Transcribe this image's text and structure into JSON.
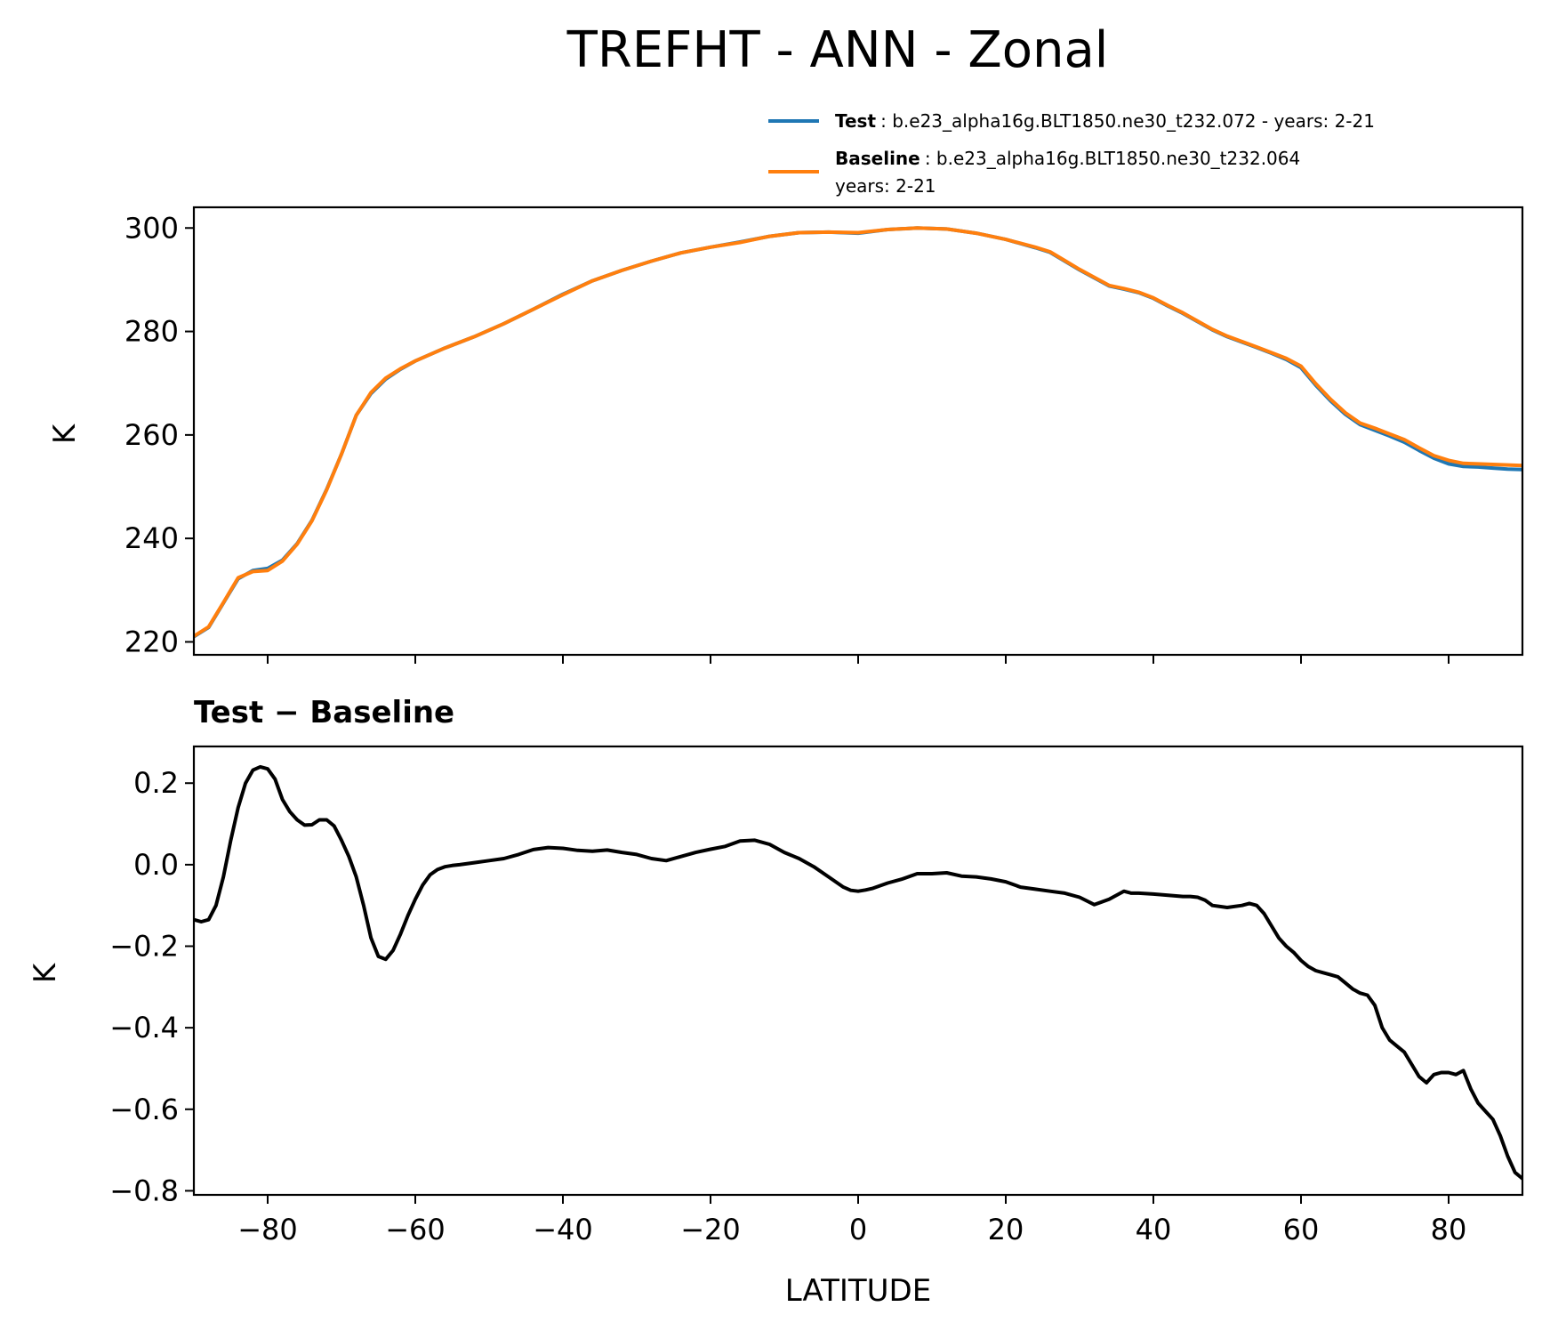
{
  "colors": {
    "test": "#1f77b4",
    "baseline": "#ff7f0e",
    "difference": "#000000"
  },
  "chart_data": [
    {
      "type": "line",
      "title": "TREFHT - ANN - Zonal",
      "xlabel": "",
      "ylabel": "K",
      "xlim": [
        -90,
        90
      ],
      "ylim": [
        217.5,
        304
      ],
      "xticks": [
        -80,
        -60,
        -40,
        -20,
        0,
        20,
        40,
        60,
        80
      ],
      "yticks": [
        220,
        240,
        260,
        280,
        300
      ],
      "ytick_labels": [
        "220",
        "240",
        "260",
        "280",
        "300"
      ],
      "legend": [
        {
          "bold": "Test",
          "text": ": b.e23_alpha16g.BLT1850.ne30_t232.072 - years: 2-21",
          "text2": ""
        },
        {
          "bold": "Baseline",
          "text": ": b.e23_alpha16g.BLT1850.ne30_t232.064",
          "text2": "years: 2-21"
        }
      ],
      "legend_position": "above-right",
      "x": [
        -90,
        -88,
        -86,
        -84,
        -82,
        -80,
        -78,
        -76,
        -74,
        -72,
        -70,
        -68,
        -66,
        -64,
        -62,
        -60,
        -56,
        -52,
        -48,
        -44,
        -40,
        -36,
        -32,
        -28,
        -24,
        -20,
        -16,
        -12,
        -8,
        -4,
        0,
        4,
        8,
        12,
        16,
        20,
        24,
        26,
        28,
        30,
        34,
        36,
        38,
        40,
        42,
        44,
        48,
        50,
        54,
        56,
        58,
        60,
        62,
        64,
        66,
        68,
        70,
        72,
        74,
        76,
        78,
        80,
        82,
        84,
        86,
        88,
        90
      ],
      "series": [
        {
          "name": "Test",
          "values": [
            221.0,
            222.8,
            227.5,
            232.2,
            233.8,
            234.2,
            235.8,
            239.0,
            243.5,
            249.5,
            256.3,
            263.8,
            268.0,
            270.8,
            272.7,
            274.3,
            276.8,
            279.0,
            281.5,
            284.3,
            287.2,
            289.8,
            291.8,
            293.6,
            295.2,
            296.3,
            297.3,
            298.4,
            299.1,
            299.2,
            299.0,
            299.7,
            300.0,
            299.8,
            299.0,
            297.8,
            296.2,
            295.3,
            293.6,
            291.9,
            288.8,
            288.2,
            287.5,
            286.4,
            284.9,
            283.5,
            280.3,
            279.0,
            276.9,
            275.8,
            274.6,
            273.0,
            269.6,
            266.6,
            264.0,
            262.0,
            260.9,
            259.8,
            258.6,
            257.0,
            255.5,
            254.4,
            253.9,
            253.8,
            253.6,
            253.4,
            253.3
          ]
        },
        {
          "name": "Baseline",
          "values": [
            221.1,
            222.9,
            227.6,
            232.4,
            233.6,
            233.8,
            235.6,
            238.9,
            243.4,
            249.4,
            256.3,
            263.8,
            268.2,
            271.0,
            272.8,
            274.3,
            276.8,
            279.0,
            281.5,
            284.3,
            287.1,
            289.8,
            291.8,
            293.6,
            295.2,
            296.3,
            297.2,
            298.4,
            299.1,
            299.2,
            299.1,
            299.7,
            300.0,
            299.8,
            299.0,
            297.8,
            296.3,
            295.4,
            293.7,
            292.0,
            288.9,
            288.3,
            287.6,
            286.5,
            285.0,
            283.6,
            280.4,
            279.1,
            277.0,
            275.9,
            274.8,
            273.3,
            269.9,
            266.9,
            264.3,
            262.3,
            261.3,
            260.2,
            259.1,
            257.5,
            256.0,
            255.1,
            254.5,
            254.4,
            254.3,
            254.2,
            254.1
          ]
        }
      ]
    },
    {
      "type": "line",
      "title": "Test − Baseline",
      "xlabel": "LATITUDE",
      "ylabel": "K",
      "xlim": [
        -90,
        90
      ],
      "ylim": [
        -0.81,
        0.29
      ],
      "xticks": [
        -80,
        -60,
        -40,
        -20,
        0,
        20,
        40,
        60,
        80
      ],
      "xtick_labels": [
        "−80",
        "−60",
        "−40",
        "−20",
        "0",
        "20",
        "40",
        "60",
        "80"
      ],
      "yticks": [
        -0.8,
        -0.6,
        -0.4,
        -0.2,
        0.0,
        0.2
      ],
      "ytick_labels": [
        "−0.8",
        "−0.6",
        "−0.4",
        "−0.2",
        "0.0",
        "0.2"
      ],
      "x": [
        -90,
        -89,
        -88,
        -87,
        -86,
        -85,
        -84,
        -83,
        -82,
        -81,
        -80,
        -79,
        -78,
        -77,
        -76,
        -75,
        -74,
        -73,
        -72,
        -71,
        -70,
        -69,
        -68,
        -67,
        -66,
        -65,
        -64,
        -63,
        -62,
        -61,
        -60,
        -59,
        -58,
        -57,
        -56,
        -55,
        -54,
        -52,
        -50,
        -48,
        -46,
        -44,
        -42,
        -40,
        -38,
        -36,
        -34,
        -32,
        -30,
        -28,
        -26,
        -24,
        -22,
        -20,
        -18,
        -16,
        -14,
        -12,
        -10,
        -8,
        -6,
        -4,
        -2,
        -1,
        0,
        1,
        2,
        4,
        6,
        8,
        10,
        12,
        14,
        16,
        18,
        20,
        22,
        24,
        26,
        28,
        30,
        32,
        34,
        36,
        37,
        38,
        40,
        42,
        44,
        45,
        46,
        47,
        48,
        50,
        52,
        53,
        54,
        55,
        56,
        57,
        58,
        59,
        60,
        61,
        62,
        63,
        64,
        65,
        66,
        67,
        68,
        69,
        70,
        71,
        72,
        73,
        74,
        75,
        76,
        77,
        78,
        79,
        80,
        81,
        82,
        83,
        84,
        85,
        86,
        87,
        88,
        89,
        90
      ],
      "series": [
        {
          "name": "Test − Baseline",
          "values": [
            -0.135,
            -0.14,
            -0.135,
            -0.1,
            -0.03,
            0.06,
            0.14,
            0.2,
            0.232,
            0.24,
            0.235,
            0.21,
            0.16,
            0.13,
            0.11,
            0.097,
            0.098,
            0.11,
            0.11,
            0.095,
            0.06,
            0.02,
            -0.03,
            -0.1,
            -0.18,
            -0.225,
            -0.232,
            -0.21,
            -0.17,
            -0.125,
            -0.085,
            -0.05,
            -0.025,
            -0.012,
            -0.005,
            -0.002,
            0.0,
            0.005,
            0.01,
            0.015,
            0.025,
            0.037,
            0.042,
            0.04,
            0.035,
            0.033,
            0.036,
            0.03,
            0.025,
            0.015,
            0.01,
            0.02,
            0.03,
            0.038,
            0.045,
            0.058,
            0.06,
            0.05,
            0.03,
            0.015,
            -0.005,
            -0.03,
            -0.055,
            -0.063,
            -0.065,
            -0.062,
            -0.058,
            -0.045,
            -0.035,
            -0.022,
            -0.022,
            -0.02,
            -0.028,
            -0.03,
            -0.035,
            -0.042,
            -0.055,
            -0.06,
            -0.065,
            -0.07,
            -0.08,
            -0.098,
            -0.085,
            -0.065,
            -0.07,
            -0.07,
            -0.072,
            -0.075,
            -0.078,
            -0.078,
            -0.08,
            -0.087,
            -0.1,
            -0.105,
            -0.1,
            -0.095,
            -0.1,
            -0.12,
            -0.15,
            -0.18,
            -0.2,
            -0.215,
            -0.235,
            -0.25,
            -0.26,
            -0.265,
            -0.27,
            -0.275,
            -0.29,
            -0.305,
            -0.315,
            -0.32,
            -0.345,
            -0.4,
            -0.43,
            -0.445,
            -0.46,
            -0.49,
            -0.52,
            -0.535,
            -0.515,
            -0.51,
            -0.51,
            -0.515,
            -0.505,
            -0.55,
            -0.585,
            -0.605,
            -0.625,
            -0.665,
            -0.715,
            -0.755,
            -0.77
          ]
        }
      ]
    }
  ]
}
